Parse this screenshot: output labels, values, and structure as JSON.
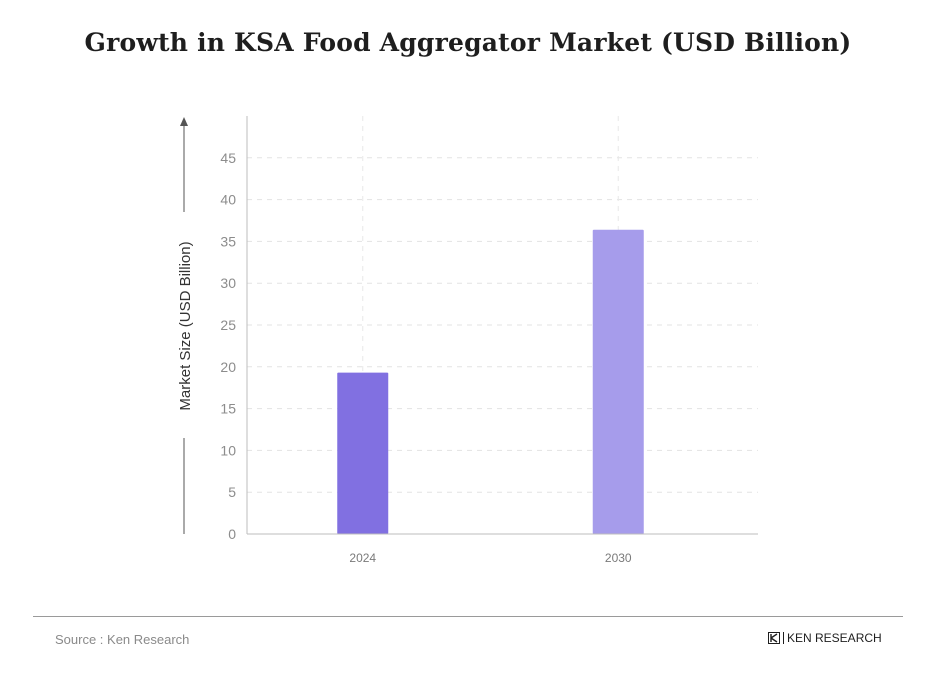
{
  "chart_data": {
    "type": "bar",
    "title": "Growth in KSA Food Aggregator Market (USD Billion)",
    "ylabel": "Market Size (USD Billion)",
    "xlabel": "",
    "categories": [
      "2024",
      "2030"
    ],
    "values": [
      19.3,
      36.4
    ],
    "ylim": [
      0,
      50
    ],
    "yticks": [
      0,
      5,
      10,
      15,
      20,
      25,
      30,
      35,
      40,
      45
    ],
    "grid": true,
    "colors": [
      "#8170e1",
      "#a69ceb"
    ]
  },
  "footer": {
    "source": "Source : Ken Research",
    "brand": "KEN RESEARCH"
  }
}
